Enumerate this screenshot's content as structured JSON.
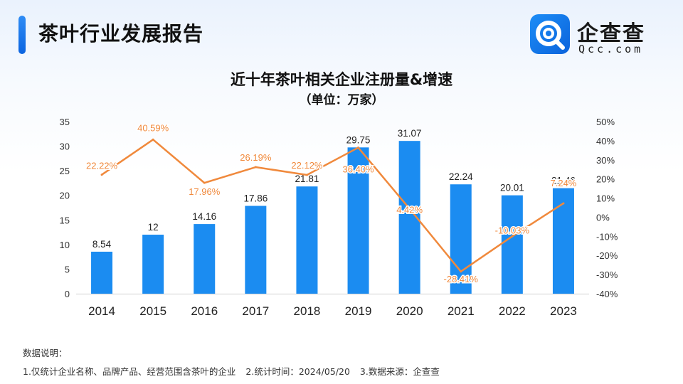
{
  "header": {
    "title": "茶叶行业发展报告"
  },
  "logo": {
    "name": "企查查",
    "domain": "Qcc.com",
    "icon": "magnifier-q-icon"
  },
  "footer": {
    "heading": "数据说明：",
    "notes": [
      "1.仅统计企业名称、品牌产品、经营范围含茶叶的企业",
      "2.统计时间：2024/05/20",
      "3.数据来源：企查查"
    ]
  },
  "colors": {
    "bar": "#1b8cf1",
    "line": "#f0893c",
    "accent": "#1677ff"
  },
  "chart_data": {
    "type": "bar",
    "title": "近十年茶叶相关企业注册量&增速",
    "subtitle": "（单位：万家）",
    "categories": [
      "2014",
      "2015",
      "2016",
      "2017",
      "2018",
      "2019",
      "2020",
      "2021",
      "2022",
      "2023"
    ],
    "series": [
      {
        "name": "注册量",
        "type": "bar",
        "axis": "left",
        "values": [
          8.54,
          12,
          14.16,
          17.86,
          21.81,
          29.75,
          31.07,
          22.24,
          20.01,
          21.46
        ],
        "labels": [
          "8.54",
          "12",
          "14.16",
          "17.86",
          "21.81",
          "29.75",
          "31.07",
          "22.24",
          "20.01",
          "21.46"
        ]
      },
      {
        "name": "增速",
        "type": "line",
        "axis": "right",
        "values": [
          22.22,
          40.59,
          17.96,
          26.19,
          22.12,
          36.4,
          4.42,
          -28.41,
          -10.03,
          7.24
        ],
        "labels": [
          "22.22%",
          "40.59%",
          "17.96%",
          "26.19%",
          "22.12%",
          "36.40%",
          "4.42%",
          "-28.41%",
          "-10.03%",
          "7.24%"
        ]
      }
    ],
    "ylim_left": [
      0,
      35
    ],
    "yticks_left": [
      "0",
      "5",
      "10",
      "15",
      "20",
      "25",
      "30",
      "35"
    ],
    "ylim_right": [
      -40,
      50
    ],
    "yticks_right": [
      "-40%",
      "-30%",
      "-20%",
      "-10%",
      "0%",
      "10%",
      "20%",
      "30%",
      "40%",
      "50%"
    ],
    "grid": false,
    "legend": "none"
  }
}
